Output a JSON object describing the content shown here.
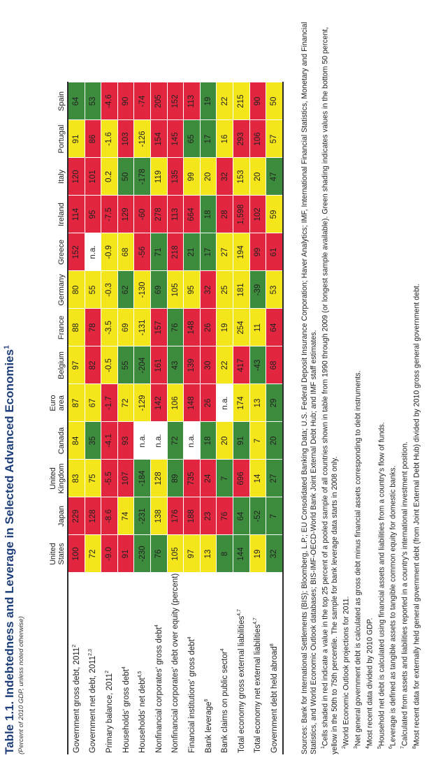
{
  "title": "Table 1.1. Indebtedness and Leverage in Selected Advanced Economies",
  "title_note": "1",
  "subtitle": "(Percent of 2010 GDP, unless noted otherwise)",
  "columns": [
    [
      "United",
      "States"
    ],
    [
      "Japan"
    ],
    [
      "United",
      "Kingdom"
    ],
    [
      "Canada"
    ],
    [
      "Euro",
      "area"
    ],
    [
      "Belgium"
    ],
    [
      "France"
    ],
    [
      "Germany"
    ],
    [
      "Greece"
    ],
    [
      "Ireland"
    ],
    [
      "Italy"
    ],
    [
      "Portugal"
    ],
    [
      "Spain"
    ]
  ],
  "rows": [
    {
      "label": "Government gross debt, 2011",
      "note": "2",
      "values": [
        "100",
        "229",
        "83",
        "84",
        "87",
        "97",
        "88",
        "80",
        "152",
        "114",
        "120",
        "91",
        "64"
      ],
      "colors": [
        "R",
        "R",
        "Y",
        "Y",
        "Y",
        "Y",
        "Y",
        "Y",
        "R",
        "R",
        "R",
        "Y",
        "G"
      ]
    },
    {
      "label": "Government net debt, 2011",
      "note": "2,3",
      "values": [
        "72",
        "128",
        "75",
        "35",
        "67",
        "82",
        "78",
        "55",
        "n.a.",
        "95",
        "101",
        "86",
        "53"
      ],
      "colors": [
        "Y",
        "R",
        "Y",
        "G",
        "Y",
        "R",
        "R",
        "Y",
        "W",
        "R",
        "R",
        "R",
        "G"
      ]
    },
    {
      "label": "Primary balance, 2011",
      "note": "2",
      "values": [
        "-9.0",
        "-8.6",
        "-5.5",
        "-4.1",
        "-1.7",
        "-0.5",
        "-3.5",
        "-0.3",
        "-0.9",
        "-7.5",
        "0.2",
        "-1.6",
        "-4.6"
      ],
      "colors": [
        "R",
        "R",
        "R",
        "R",
        "R",
        "Y",
        "Y",
        "Y",
        "Y",
        "R",
        "Y",
        "Y",
        "R"
      ]
    },
    {
      "label": "Households' gross debt",
      "note": "4",
      "values": [
        "91",
        "74",
        "107",
        "93",
        "72",
        "55",
        "69",
        "62",
        "68",
        "129",
        "50",
        "103",
        "90"
      ],
      "colors": [
        "R",
        "Y",
        "R",
        "R",
        "Y",
        "G",
        "Y",
        "G",
        "Y",
        "R",
        "G",
        "R",
        "R"
      ]
    },
    {
      "label": "Households' net debt",
      "note": "4,5",
      "values": [
        "-230",
        "-231",
        "-184",
        "n.a.",
        "-129",
        "-204",
        "-131",
        "-130",
        "-56",
        "-60",
        "-178",
        "-126",
        "-74"
      ],
      "colors": [
        "G",
        "G",
        "G",
        "W",
        "Y",
        "G",
        "Y",
        "Y",
        "R",
        "R",
        "G",
        "Y",
        "R"
      ]
    },
    {
      "label": "Nonfinancial corporates' gross debt",
      "note": "4",
      "values": [
        "76",
        "138",
        "128",
        "n.a.",
        "142",
        "161",
        "157",
        "69",
        "71",
        "278",
        "119",
        "154",
        "205"
      ],
      "colors": [
        "G",
        "Y",
        "Y",
        "W",
        "R",
        "R",
        "R",
        "G",
        "G",
        "R",
        "Y",
        "R",
        "R"
      ]
    },
    {
      "label": "Nonfinancial corporates' debt over equity (percent)",
      "note": "",
      "values": [
        "105",
        "176",
        "89",
        "72",
        "106",
        "43",
        "76",
        "105",
        "218",
        "113",
        "135",
        "145",
        "152"
      ],
      "colors": [
        "Y",
        "R",
        "G",
        "G",
        "Y",
        "G",
        "G",
        "Y",
        "R",
        "R",
        "R",
        "R",
        "R"
      ]
    },
    {
      "label": "Financial institutions' gross debt",
      "note": "4",
      "values": [
        "97",
        "188",
        "735",
        "n.a.",
        "148",
        "139",
        "148",
        "95",
        "21",
        "664",
        "99",
        "65",
        "113"
      ],
      "colors": [
        "Y",
        "R",
        "R",
        "W",
        "R",
        "R",
        "R",
        "Y",
        "G",
        "R",
        "Y",
        "G",
        "R"
      ]
    },
    {
      "label": "Bank leverage",
      "note": "6",
      "values": [
        "13",
        "23",
        "24",
        "18",
        "26",
        "30",
        "26",
        "32",
        "17",
        "18",
        "20",
        "17",
        "19"
      ],
      "colors": [
        "Y",
        "R",
        "R",
        "G",
        "R",
        "R",
        "R",
        "R",
        "G",
        "G",
        "Y",
        "G",
        "G"
      ]
    },
    {
      "label": "Bank claims on public sector",
      "note": "4",
      "values": [
        "8",
        "76",
        "7",
        "20",
        "n.a.",
        "22",
        "19",
        "25",
        "27",
        "28",
        "32",
        "16",
        "22"
      ],
      "colors": [
        "G",
        "R",
        "G",
        "Y",
        "W",
        "Y",
        "Y",
        "Y",
        "Y",
        "R",
        "R",
        "Y",
        "Y"
      ]
    },
    {
      "label": "Total economy gross external liabilities",
      "note": "4,7",
      "values": [
        "144",
        "64",
        "696",
        "91",
        "174",
        "417",
        "254",
        "181",
        "194",
        "1,598",
        "153",
        "293",
        "215"
      ],
      "colors": [
        "G",
        "G",
        "R",
        "G",
        "Y",
        "R",
        "Y",
        "Y",
        "Y",
        "R",
        "Y",
        "R",
        "Y"
      ]
    },
    {
      "label": "Total economy net external liabilities",
      "note": "4,7",
      "values": [
        "19",
        "-52",
        "14",
        "7",
        "13",
        "-43",
        "11",
        "-39",
        "99",
        "102",
        "20",
        "106",
        "90"
      ],
      "colors": [
        "Y",
        "G",
        "Y",
        "Y",
        "Y",
        "G",
        "Y",
        "G",
        "R",
        "R",
        "Y",
        "R",
        "R"
      ]
    },
    {
      "label": "Government debt held abroad",
      "note": "8",
      "values": [
        "32",
        "7",
        "27",
        "20",
        "29",
        "68",
        "64",
        "53",
        "61",
        "59",
        "47",
        "57",
        "50"
      ],
      "colors": [
        "G",
        "G",
        "G",
        "G",
        "G",
        "R",
        "R",
        "Y",
        "R",
        "Y",
        "G",
        "Y",
        "Y"
      ]
    }
  ],
  "notes": {
    "sources": "Sources: Bank for International Settlements (BIS); Bloomberg, L.P.; EU Consolidated Banking Data; U.S. Federal Deposit Insurance Corporation; Haver Analytics; IMF, International Financial Statistics, Monetary and Financial Statistics, and World Economic Outlook databases; BIS-IMF-OECD-World Bank Joint External Debt Hub; and IMF staff estimates.",
    "n1": "Cells shaded in red indicate a value in the top 25 percent of a pooled sample of all countries shown in table from 1990 through 2009 (or longest sample available). Green shading indicates values in the bottom 50 percent, yellow in the 50th to 75th percentile. The sample for bank leverage data starts in 2008 only.",
    "n2": "World Economic Outlook projections for 2011.",
    "n3": "Net general government debt is calculated as gross debt minus financial assets corresponding to debt instruments.",
    "n4": "Most recent data divided by 2010 GDP.",
    "n5": "Household net debt is calculated using financial assets and liabilities from a country's flow of funds.",
    "n6": "Leverage is defined as tangible assets to tangible common equity for domestic banks.",
    "n7": "Calculated from assets and liabilities reported in a country's international investment position.",
    "n8": "Most recent data for externally held general government debt (from Joint External Debt Hub) divided by 2010 gross general government debt."
  }
}
